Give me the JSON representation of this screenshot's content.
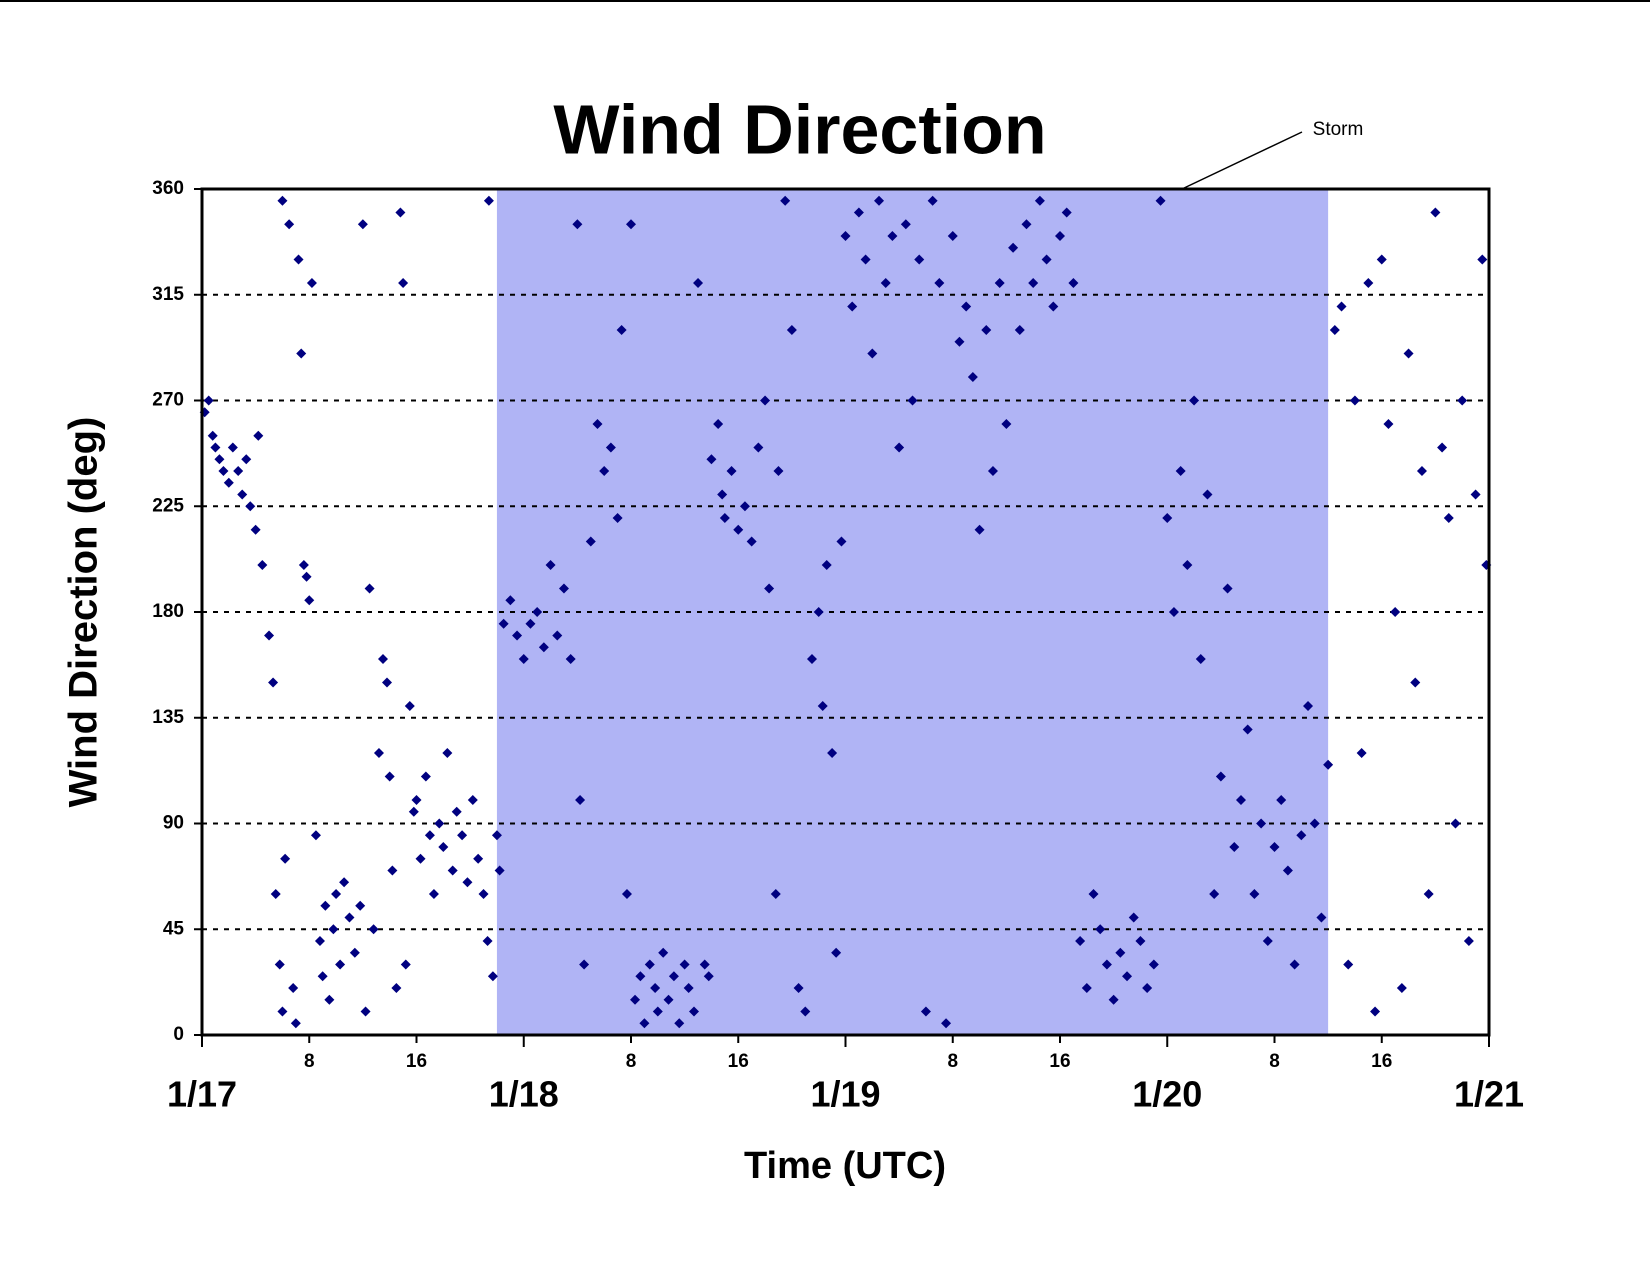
{
  "chart_data": {
    "type": "scatter",
    "title": "Wind Direction",
    "x_label": "Time (UTC)",
    "y_label": "Wind Direction (deg)",
    "color": "#000080",
    "grid": true,
    "xlim": [
      0,
      96
    ],
    "ylim": [
      0,
      360
    ],
    "yticks": [
      0,
      45,
      90,
      135,
      180,
      225,
      270,
      315,
      360
    ],
    "xticks": [
      {
        "value": 0,
        "label": "1/17"
      },
      8,
      16,
      {
        "value": 24,
        "label": "1/18"
      },
      {
        "value": 32,
        "label": "8"
      },
      {
        "value": 40,
        "label": "16"
      },
      {
        "value": 48,
        "label": "1/19"
      },
      {
        "value": 56,
        "label": "8"
      },
      {
        "value": 64,
        "label": "16"
      },
      {
        "value": 72,
        "label": "1/20"
      },
      {
        "value": 80,
        "label": "8"
      },
      {
        "value": 88,
        "label": "16"
      },
      {
        "value": 96,
        "label": "1/21"
      }
    ],
    "storm": {
      "label": "Storm",
      "start": 22,
      "end": 84,
      "color": "#b0b4f5"
    },
    "x": [
      0.2,
      0.5,
      0.8,
      1.0,
      1.3,
      1.6,
      2.0,
      2.3,
      2.7,
      3.0,
      3.3,
      3.6,
      4.0,
      4.2,
      4.5,
      5,
      5.3,
      5.5,
      5.8,
      6,
      6,
      6.2,
      6.5,
      6.8,
      7.0,
      7.2,
      7.4,
      7.6,
      7.8,
      8,
      8.2,
      8.5,
      8.8,
      9,
      9.2,
      9.5,
      9.8,
      10,
      10.3,
      10.6,
      11,
      11.4,
      11.8,
      12,
      12.2,
      12.5,
      12.8,
      13.2,
      13.5,
      13.8,
      14,
      14.2,
      14.5,
      14.8,
      15,
      15.2,
      15.5,
      15.8,
      16,
      16.3,
      16.7,
      17,
      17.3,
      17.7,
      18,
      18.3,
      18.7,
      19,
      19.4,
      19.8,
      20.2,
      20.6,
      21,
      21.3,
      21.4,
      21.7,
      22,
      22.2,
      22.5,
      23,
      23.5,
      24,
      24.5,
      25,
      25.5,
      26,
      26.5,
      27,
      27.5,
      28,
      28.2,
      28.5,
      29,
      29.5,
      30,
      30.5,
      31,
      31.3,
      31.7,
      32,
      32.3,
      32.7,
      33,
      33.4,
      33.8,
      34,
      34.4,
      34.8,
      35.2,
      35.6,
      36,
      36.3,
      36.7,
      37,
      37.5,
      37.8,
      38,
      38.5,
      38.8,
      39,
      39.5,
      40,
      40.5,
      41,
      41.5,
      42,
      42.3,
      42.8,
      43,
      43.5,
      44,
      44.5,
      45,
      45.5,
      46,
      46.3,
      46.6,
      47,
      47.3,
      47.7,
      48,
      48.5,
      49,
      49.5,
      50,
      50.5,
      51,
      51.5,
      52,
      52.5,
      53,
      53.5,
      54,
      54.5,
      55,
      55.5,
      56,
      56.5,
      57,
      57.5,
      58,
      58.5,
      59,
      59.5,
      60,
      60.5,
      61,
      61.5,
      62,
      62.5,
      63,
      63.5,
      64,
      64.5,
      65,
      65.5,
      66,
      66.5,
      67,
      67.5,
      68,
      68.5,
      69,
      69.5,
      70,
      70.5,
      71,
      71.5,
      72,
      72.5,
      73,
      73.5,
      74,
      74.5,
      75,
      75.5,
      76,
      76.5,
      77,
      77.5,
      78,
      78.5,
      79,
      79.5,
      80,
      80.5,
      81,
      81.5,
      82,
      82.5,
      83,
      83.5,
      84,
      84.5,
      85,
      85.5,
      86,
      86.5,
      87,
      87.5,
      88,
      88.5,
      89,
      89.5,
      90,
      90.5,
      91,
      91.5,
      92,
      92.5,
      93,
      93.5,
      94,
      94.5,
      95,
      95.5,
      95.8
    ],
    "values": [
      265,
      270,
      255,
      250,
      245,
      240,
      235,
      250,
      240,
      230,
      245,
      225,
      215,
      255,
      200,
      170,
      150,
      60,
      30,
      10,
      355,
      75,
      345,
      20,
      5,
      330,
      290,
      200,
      195,
      185,
      320,
      85,
      40,
      25,
      55,
      15,
      45,
      60,
      30,
      65,
      50,
      35,
      55,
      345,
      10,
      190,
      45,
      120,
      160,
      150,
      110,
      70,
      20,
      350,
      320,
      30,
      140,
      95,
      100,
      75,
      110,
      85,
      60,
      90,
      80,
      120,
      70,
      95,
      85,
      65,
      100,
      75,
      60,
      40,
      355,
      25,
      85,
      70,
      175,
      185,
      170,
      160,
      175,
      180,
      165,
      200,
      170,
      190,
      160,
      345,
      100,
      30,
      210,
      260,
      240,
      250,
      220,
      300,
      60,
      345,
      15,
      25,
      5,
      30,
      20,
      10,
      35,
      15,
      25,
      5,
      30,
      20,
      10,
      320,
      30,
      25,
      245,
      260,
      230,
      220,
      240,
      215,
      225,
      210,
      250,
      270,
      190,
      60,
      240,
      355,
      300,
      20,
      10,
      160,
      180,
      140,
      200,
      120,
      35,
      210,
      340,
      310,
      350,
      330,
      290,
      355,
      320,
      340,
      250,
      345,
      270,
      330,
      10,
      355,
      320,
      5,
      340,
      295,
      310,
      280,
      215,
      300,
      240,
      320,
      260,
      335,
      300,
      345,
      320,
      355,
      330,
      310,
      340,
      350,
      320,
      40,
      20,
      60,
      45,
      30,
      15,
      35,
      25,
      50,
      40,
      20,
      30,
      355,
      220,
      180,
      240,
      200,
      270,
      160,
      230,
      60,
      110,
      190,
      80,
      100,
      130,
      60,
      90,
      40,
      80,
      100,
      70,
      30,
      85,
      140,
      90,
      50,
      115,
      300,
      310,
      30,
      270,
      120,
      320,
      10,
      330,
      260,
      180,
      20,
      290,
      150,
      240,
      60,
      350,
      250,
      220,
      90,
      270,
      40,
      230,
      330,
      200
    ]
  }
}
